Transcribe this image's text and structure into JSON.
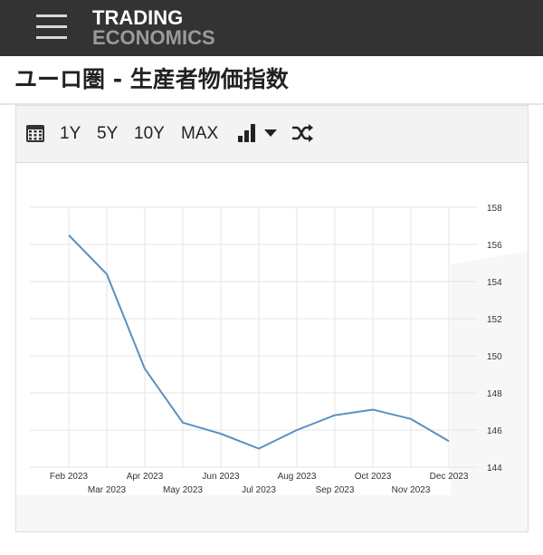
{
  "header": {
    "logo_line1": "TRADING",
    "logo_line2": "ECONOMICS",
    "menu_icon": "hamburger-menu-icon"
  },
  "page": {
    "title": "ユーロ圏 - 生産者物価指数"
  },
  "toolbar": {
    "calendar_icon": "calendar-icon",
    "ranges": [
      "1Y",
      "5Y",
      "10Y",
      "MAX"
    ],
    "chart_type_icon": "bar-chart-icon",
    "dropdown_icon": "caret-down-icon",
    "compare_icon": "shuffle-icon"
  },
  "colors": {
    "topbar": "#333333",
    "line": "#5a8fc2",
    "grid": "#e6e6e6"
  },
  "chart_data": {
    "type": "line",
    "x": [
      "Feb 2023",
      "Mar 2023",
      "Apr 2023",
      "May 2023",
      "Jun 2023",
      "Jul 2023",
      "Aug 2023",
      "Sep 2023",
      "Oct 2023",
      "Nov 2023",
      "Dec 2023"
    ],
    "series": [
      {
        "values": [
          156.5,
          154.4,
          149.3,
          146.4,
          145.8,
          145.0,
          146.0,
          146.8,
          147.1,
          146.6,
          145.4
        ]
      }
    ],
    "y_ticks": [
      "144",
      "146",
      "148",
      "150",
      "152",
      "154",
      "156",
      "158"
    ],
    "ylim": [
      144,
      158
    ],
    "x_tick_labels_upper": [
      "Feb 2023",
      "Apr 2023",
      "Jun 2023",
      "Aug 2023",
      "Oct 2023",
      "Dec 2023"
    ],
    "x_tick_labels_lower": [
      "Mar 2023",
      "May 2023",
      "Jul 2023",
      "Sep 2023",
      "Nov 2023"
    ],
    "grid": true,
    "y_axis_side": "right"
  }
}
